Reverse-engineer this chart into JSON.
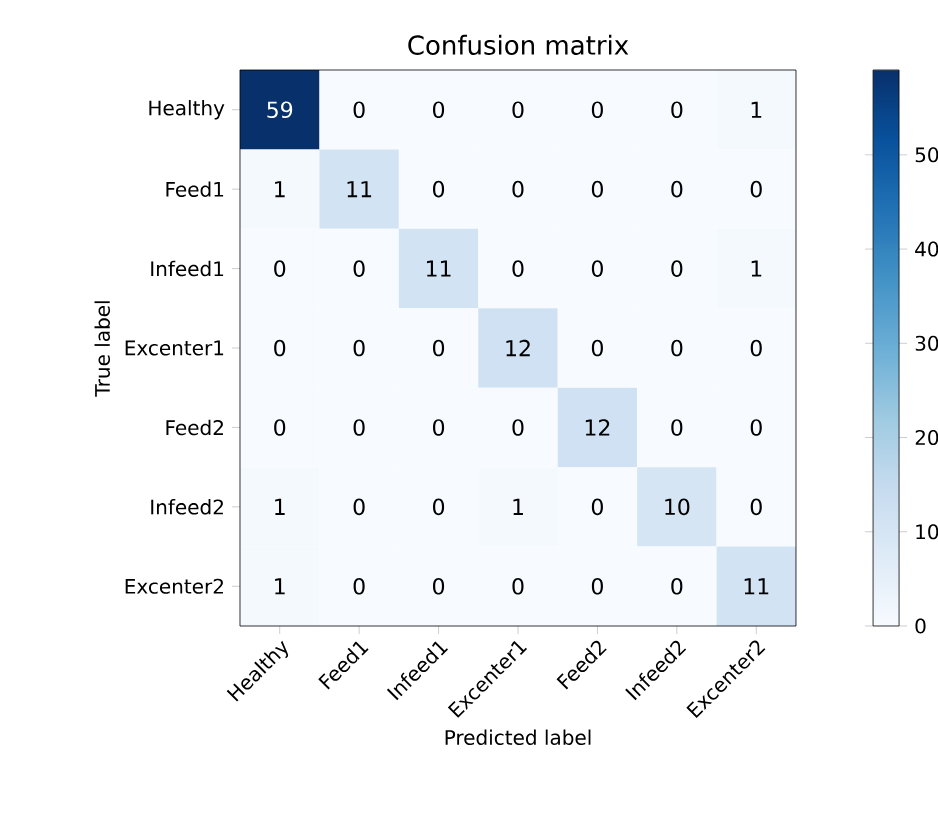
{
  "chart_data": {
    "type": "heatmap",
    "title": "Confusion matrix",
    "xlabel": "Predicted label",
    "ylabel": "True label",
    "categories": [
      "Healthy",
      "Feed1",
      "Infeed1",
      "Excenter1",
      "Feed2",
      "Infeed2",
      "Excenter2"
    ],
    "y_categories": [
      "Healthy",
      "Feed1",
      "Infeed1",
      "Excenter1",
      "Feed2",
      "Infeed2",
      "Excenter2"
    ],
    "cells": [
      [
        59,
        0,
        0,
        0,
        0,
        0,
        1
      ],
      [
        1,
        11,
        0,
        0,
        0,
        0,
        0
      ],
      [
        0,
        0,
        11,
        0,
        0,
        0,
        1
      ],
      [
        0,
        0,
        0,
        12,
        0,
        0,
        0
      ],
      [
        0,
        0,
        0,
        0,
        12,
        0,
        0
      ],
      [
        1,
        0,
        0,
        1,
        0,
        10,
        0
      ],
      [
        1,
        0,
        0,
        0,
        0,
        0,
        11
      ]
    ],
    "clim": [
      0,
      59
    ],
    "cticks": [
      0,
      10,
      20,
      30,
      40,
      50
    ],
    "data_labels": true
  }
}
